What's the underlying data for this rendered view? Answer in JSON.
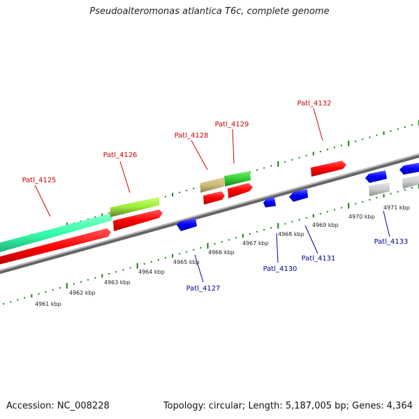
{
  "title": "Pseudoalteromonas atlantica T6c, complete genome",
  "accession": "Accession: NC_008228",
  "topology": "Topology: circular; Length: 5,187,005 bp; Genes: 4,364",
  "ticks": [
    "4961 kbp",
    "4962 kbp",
    "4963 kbp",
    "4964 kbp",
    "4965 kbp",
    "4966 kbp",
    "4967 kbp",
    "4968 kbp",
    "4969 kbp",
    "4970 kbp",
    "4971 kbp"
  ],
  "genes_forward": [
    "Patl_4125",
    "Patl_4126",
    "Patl_4128",
    "Patl_4129",
    "Patl_4132"
  ],
  "genes_reverse": [
    "Patl_4127",
    "Patl_4130",
    "Patl_4131",
    "Patl_4133"
  ],
  "colors": {
    "forward_label": "#cc0000",
    "reverse_label": "#000099",
    "tick": "#1a7a1a",
    "cds": "#ff0000",
    "blue_feature": "#0000ff",
    "teal_feature": "#33ffaa",
    "lime_feature": "#99ee33",
    "khaki_feature": "#ccbb77",
    "green_feature": "#33cc33",
    "grey_feature": "#cccccc",
    "backbone": "#888888"
  }
}
